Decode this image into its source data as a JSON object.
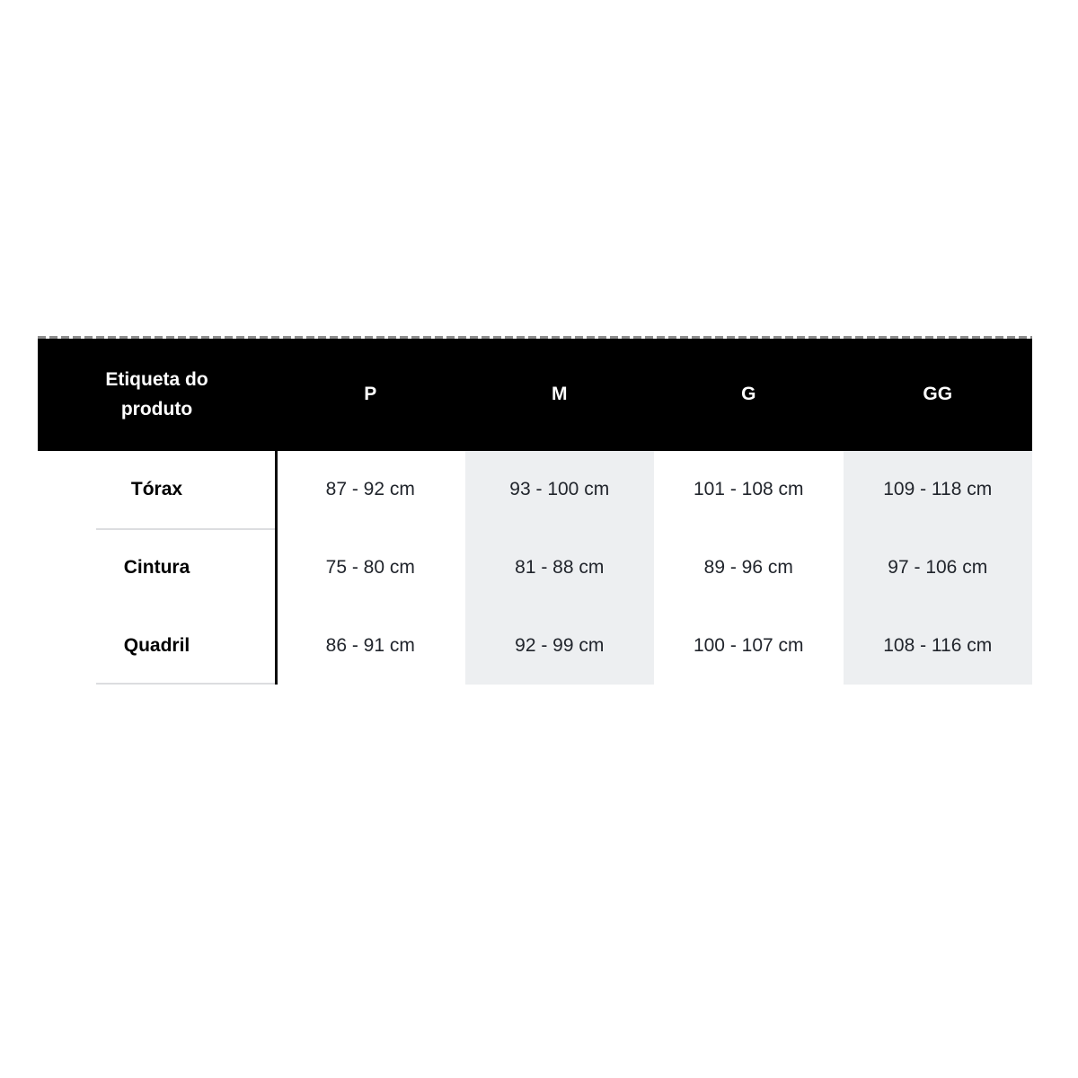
{
  "size_chart": {
    "header": {
      "label_column": "Etiqueta do produto",
      "sizes": [
        "P",
        "M",
        "G",
        "GG"
      ]
    },
    "rows": [
      {
        "label": "Tórax",
        "values": [
          "87 - 92 cm",
          "93 - 100 cm",
          "101 - 108 cm",
          "109 - 118 cm"
        ]
      },
      {
        "label": "Cintura",
        "values": [
          "75 - 80 cm",
          "81 - 88 cm",
          "89 - 96 cm",
          "97 - 106 cm"
        ]
      },
      {
        "label": "Quadril",
        "values": [
          "86 - 91 cm",
          "92 - 99 cm",
          "100 - 107 cm",
          "108 - 116 cm"
        ]
      }
    ],
    "striped_size_columns": [
      "M",
      "GG"
    ],
    "colors": {
      "header_bg": "#000000",
      "header_text": "#ffffff",
      "stripe_bg": "#edeff1",
      "value_text": "#21252c",
      "label_text": "#000000",
      "row_divider": "#dcdde0",
      "vertical_rule": "#0d0d0d",
      "dashed_top_border": "#8d8d8d",
      "page_bg": "#ffffff"
    }
  }
}
